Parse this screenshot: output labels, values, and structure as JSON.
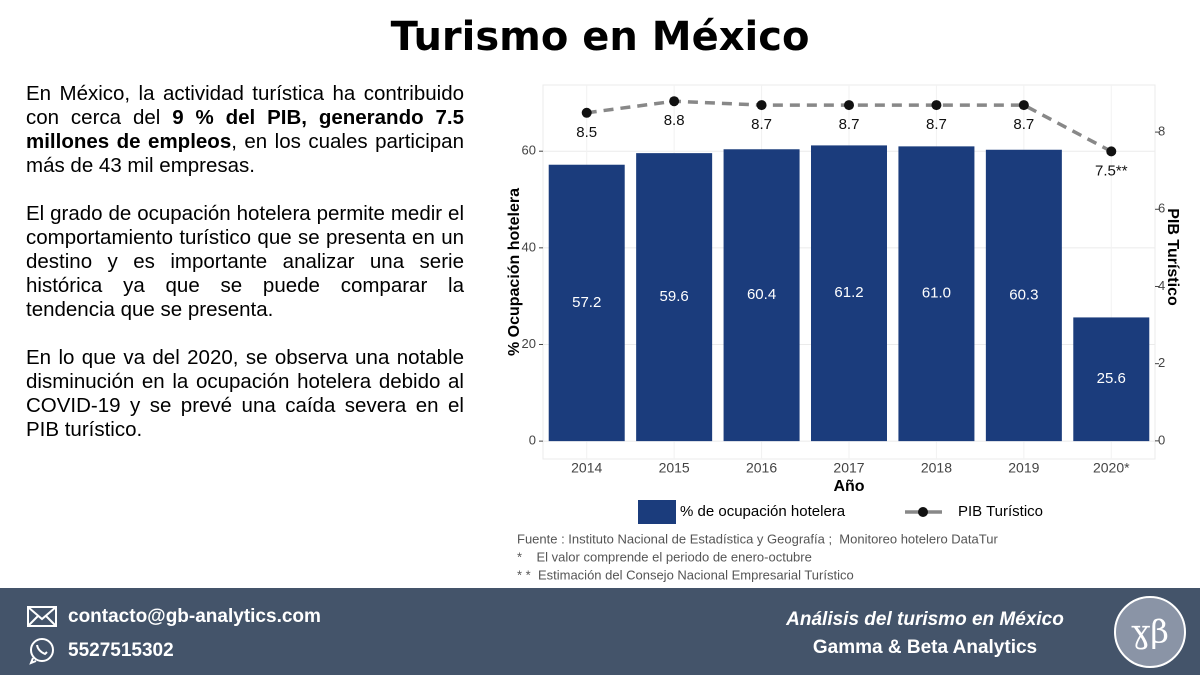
{
  "title": "Turismo en México",
  "paragraphs": [
    [
      {
        "text": "En México, la actividad turística ha contribuido con cerca del "
      },
      {
        "text": "9 % del PIB, generando 7.5 millones de empleos",
        "bold": true
      },
      {
        "text": ", en los cuales participan más de 43 mil empresas."
      }
    ],
    [
      {
        "text": "El grado de ocupación hotelera permite medir el comportamiento turístico que se presenta en un destino y es importante analizar una serie histórica ya que se puede comparar la tendencia que se presenta."
      }
    ],
    [
      {
        "text": "En lo que va del 2020, se observa una notable disminución en la ocupación hotelera debido al COVID-19 y se prevé una caída severa en el PIB turístico."
      }
    ]
  ],
  "chart_data": {
    "type": "bar_line",
    "x_label": "Año",
    "y_label": "% Ocupación hotelera",
    "y2_label": "PIB Turístico",
    "categories": [
      "2014",
      "2015",
      "2016",
      "2017",
      "2018",
      "2019",
      "2020*"
    ],
    "series": [
      {
        "name": "% de ocupación hotelera",
        "color": "#1b3c7c",
        "values": [
          57.2,
          59.6,
          60.4,
          61.2,
          61.0,
          60.3,
          25.6
        ],
        "value_labels": [
          "57.2",
          "59.6",
          "60.4",
          "61.2",
          "61.0",
          "60.3",
          "25.6"
        ]
      },
      {
        "name": "PIB Turístico",
        "color": "#888888",
        "axis": "y2",
        "values": [
          8.5,
          8.8,
          8.7,
          8.7,
          8.7,
          8.7,
          7.5
        ],
        "value_labels": [
          "8.5",
          "8.8",
          "8.7",
          "8.7",
          "8.7",
          "8.7",
          "7.5**"
        ]
      }
    ],
    "ylim": [
      -3.7,
      73.7
    ],
    "yticks": [
      0,
      20,
      40,
      60
    ],
    "y2lim": [
      -0.47,
      9.22
    ],
    "y2ticks": [
      0,
      2,
      4,
      6,
      8
    ],
    "grid": true,
    "notes": [
      "Fuente : Instituto Nacional de Estadística y Geografía ;  Monitoreo hotelero DataTur",
      "*    El valor comprende el periodo de enero-octubre",
      "* *  Estimación del Consejo Nacional Empresarial Turístico"
    ]
  },
  "footer": {
    "email": "contacto@gb-analytics.com",
    "phone": "5527515302",
    "right_lines": [
      "Análisis del turismo en México",
      "Gamma & Beta Analytics"
    ],
    "logo": "ɣβ"
  }
}
